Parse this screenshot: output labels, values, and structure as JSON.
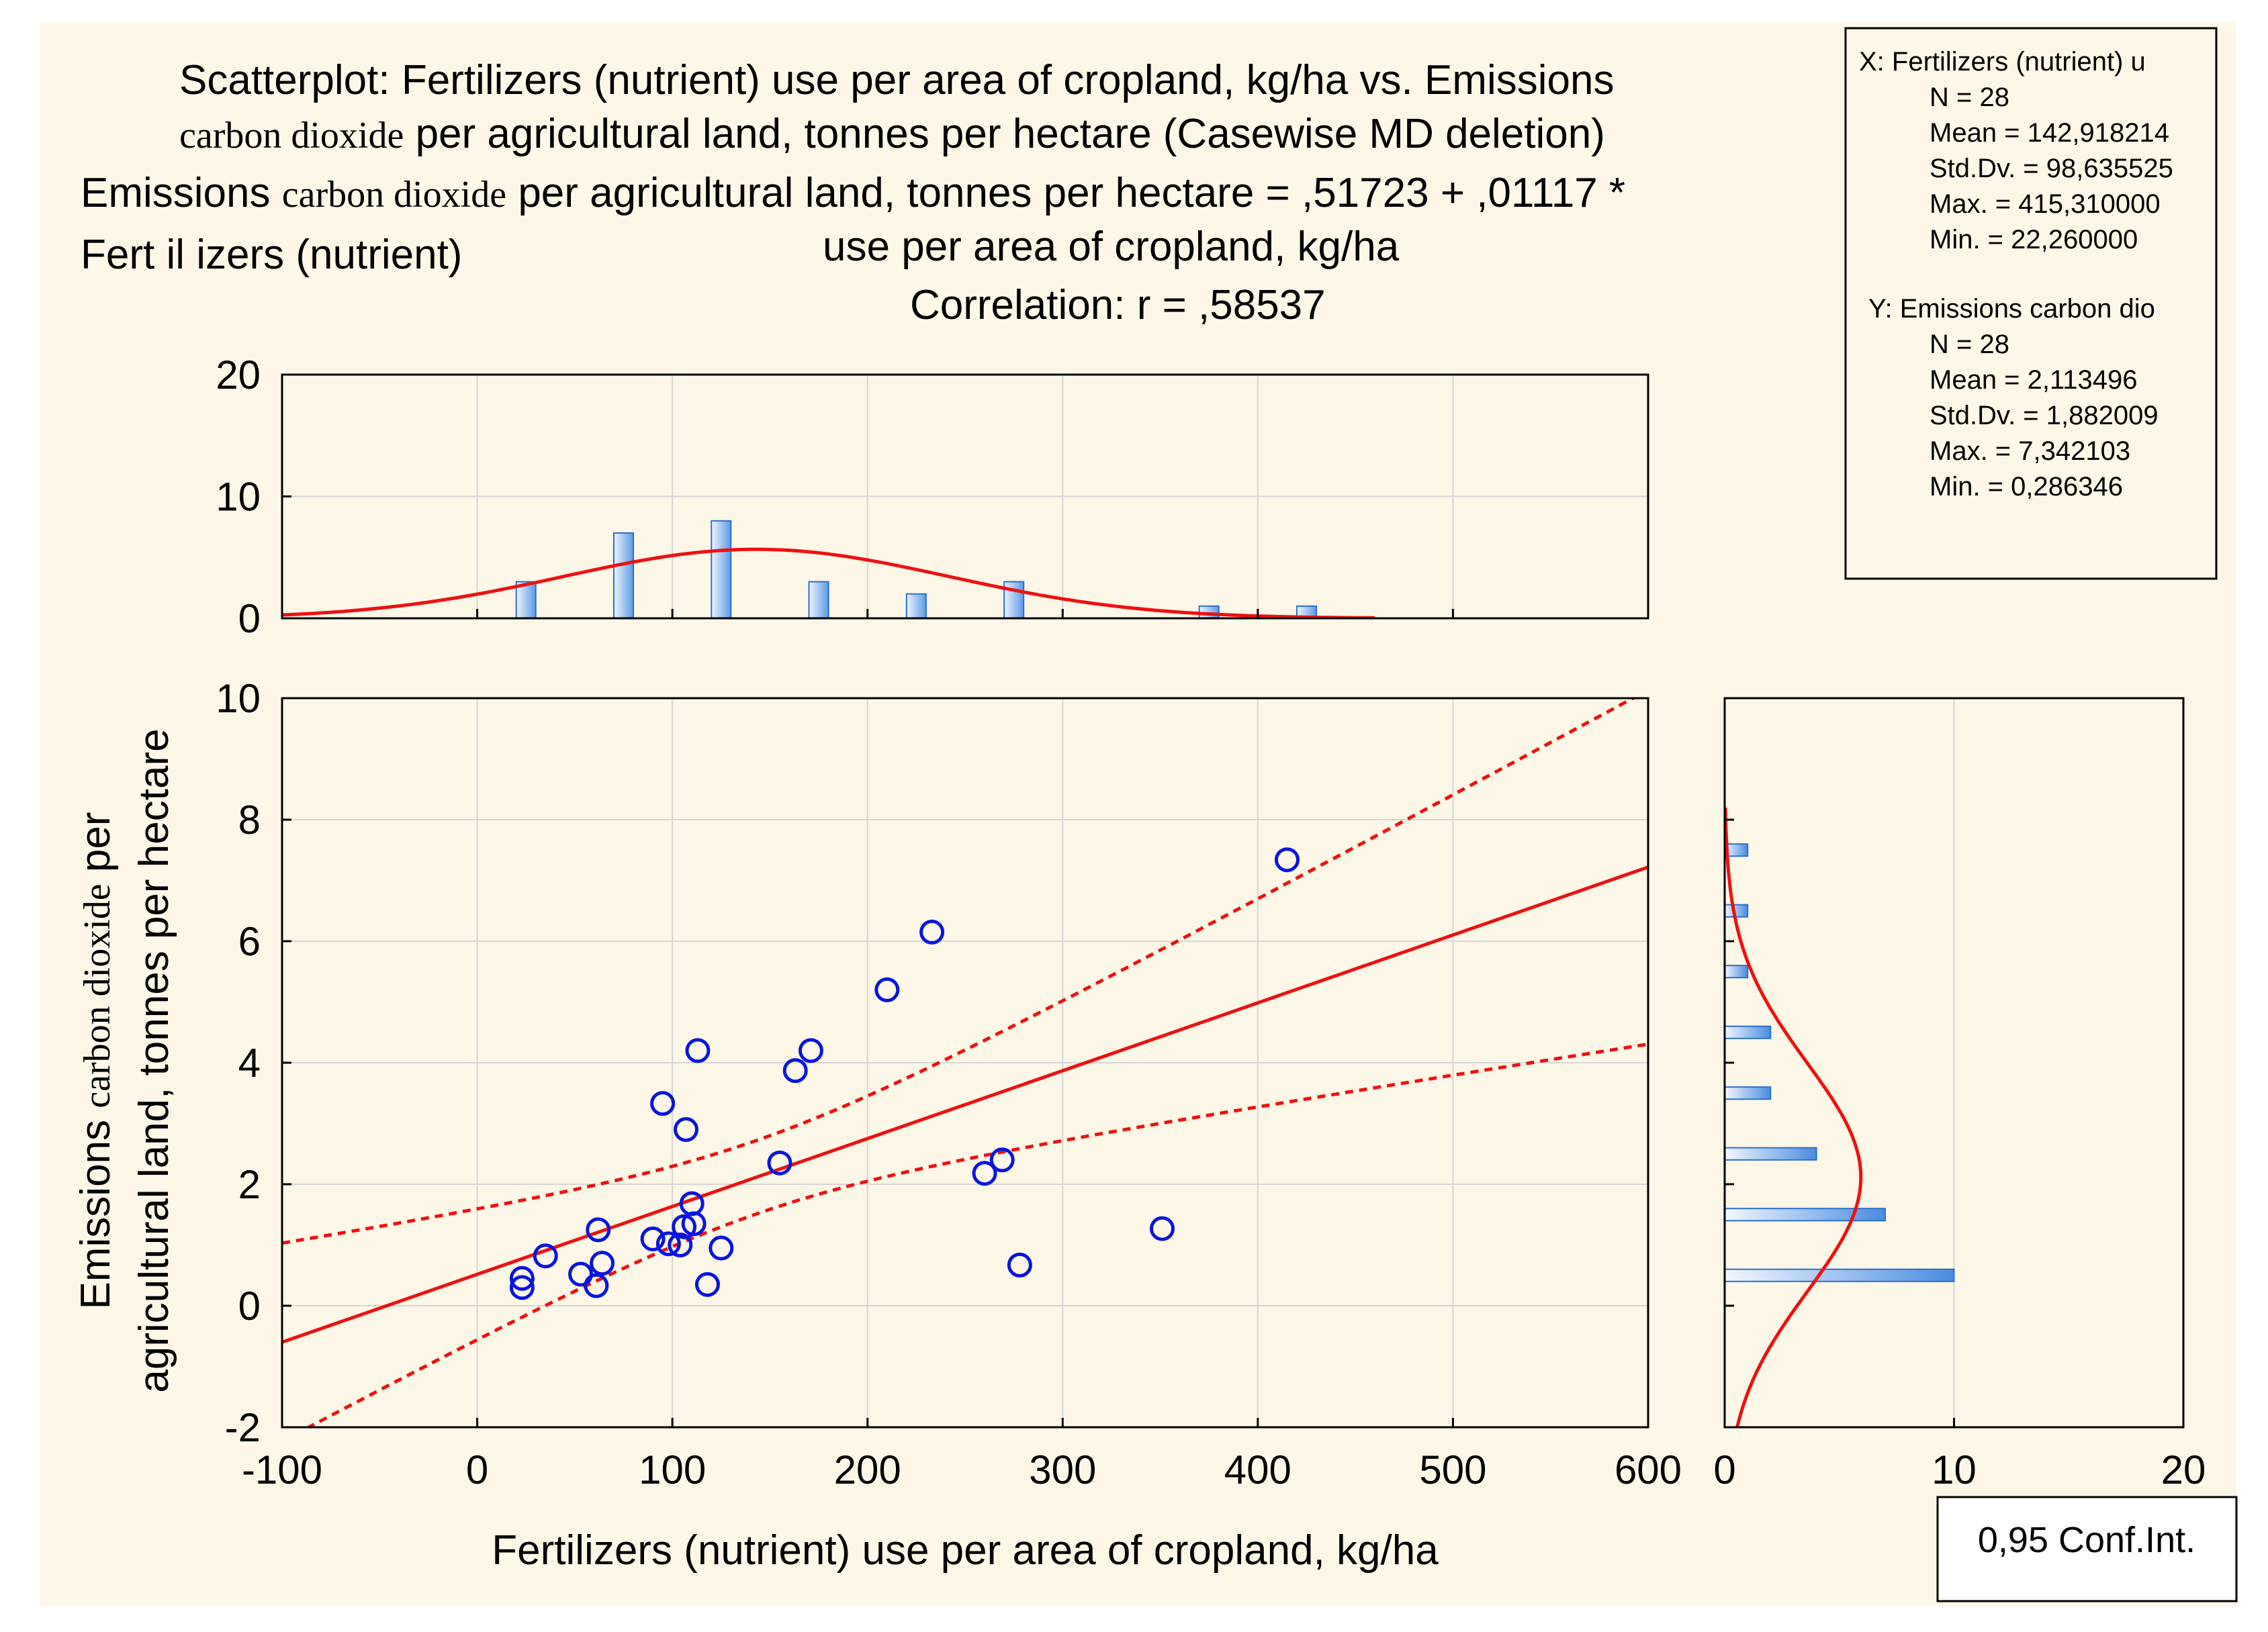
{
  "chart_data": {
    "type": "scatter",
    "title_lines": [
      {
        "a": "Scatterplot: Fertilizers (nutrient) use per area of cropland, kg/ha vs. Emissions"
      },
      {
        "a_serif": "carbon  dioxide",
        "b": " per agricultural land, tonnes per hectare (Casewise MD deletion)"
      },
      {
        "a": "Emissions ",
        "a_serif": "carbon dioxide",
        "b": " per agricultural land, tonnes per hectare = ,51723 + ,01117 *"
      },
      {
        "left": "Fert il  izers (nutrient)",
        "right": "use per area of cropland, kg/ha"
      },
      {
        "a": "Correlation: r = ,58537"
      }
    ],
    "xlabel": "Fertilizers (nutrient) use per area of cropland, kg/ha",
    "ylabel_line1_a": "Emissions ",
    "ylabel_line1_serif": "carbon dioxide",
    "ylabel_line1_b": " per",
    "ylabel_line2": "agricultural land, tonnes per hectare",
    "xlim": [
      -100,
      600
    ],
    "ylim": [
      -2,
      10
    ],
    "x_ticks": [
      "-100",
      "0",
      "100",
      "200",
      "300",
      "400",
      "500",
      "600"
    ],
    "y_ticks": [
      "-2",
      "0",
      "2",
      "4",
      "6",
      "8",
      "10"
    ],
    "points": [
      [
        23,
        0.45
      ],
      [
        23,
        0.3
      ],
      [
        35,
        0.82
      ],
      [
        53,
        0.52
      ],
      [
        61,
        0.33
      ],
      [
        62,
        1.25
      ],
      [
        64,
        0.7
      ],
      [
        90,
        1.1
      ],
      [
        95,
        3.33
      ],
      [
        98,
        1.02
      ],
      [
        104,
        1.0
      ],
      [
        106,
        1.3
      ],
      [
        107,
        2.9
      ],
      [
        110,
        1.68
      ],
      [
        111,
        1.35
      ],
      [
        113,
        4.2
      ],
      [
        118,
        0.35
      ],
      [
        125,
        0.95
      ],
      [
        155,
        2.35
      ],
      [
        163,
        3.87
      ],
      [
        171,
        4.2
      ],
      [
        210,
        5.2
      ],
      [
        233,
        6.15
      ],
      [
        260,
        2.18
      ],
      [
        269,
        2.4
      ],
      [
        278,
        0.67
      ],
      [
        351,
        1.27
      ],
      [
        415,
        7.34
      ]
    ],
    "regression": {
      "intercept": 0.51723,
      "slope": 0.01117
    },
    "conf_band": {
      "n": 28,
      "x_mean": 142.918214,
      "x_sd": 98.635525,
      "y_sd": 1.882009,
      "r": 0.58537,
      "t": 2.056
    },
    "top_hist": {
      "ylim": [
        0,
        20
      ],
      "y_ticks": [
        "0",
        "10",
        "20"
      ],
      "bins": [
        [
          25,
          3
        ],
        [
          75,
          7
        ],
        [
          125,
          8
        ],
        [
          175,
          3
        ],
        [
          225,
          2
        ],
        [
          275,
          3
        ],
        [
          375,
          1
        ],
        [
          425,
          1
        ]
      ],
      "bin_width": 50,
      "normal": {
        "mean": 142.918214,
        "sd": 98.635525
      }
    },
    "right_hist": {
      "xlim": [
        0,
        20
      ],
      "x_ticks": [
        "0",
        "10",
        "20"
      ],
      "bins": [
        [
          0.5,
          10
        ],
        [
          1.5,
          7
        ],
        [
          2.5,
          4
        ],
        [
          3.5,
          2
        ],
        [
          4.5,
          2
        ],
        [
          5.5,
          1
        ],
        [
          6.5,
          1
        ],
        [
          7.5,
          1
        ]
      ],
      "bin_width": 1,
      "normal": {
        "mean": 2.113496,
        "sd": 1.882009
      }
    },
    "stats_box": {
      "x_header": "X:  Fertilizers (nutrient) u",
      "x_lines": [
        "N = 28",
        "Mean = 142,918214",
        "Std.Dv. = 98,635525",
        "Max. = 415,310000",
        "Min. = 22,260000"
      ],
      "y_header": "Y:  Emissions carbon dio",
      "y_lines": [
        "N = 28",
        "Mean = 2,113496",
        "Std.Dv. = 1,882009",
        "Max. = 7,342103",
        "Min. = 0,286346"
      ]
    },
    "legend_label": "0,95 Conf.Int.",
    "colors": {
      "background": "#fdf7e7",
      "line": "#ee1111",
      "marker": "#0a14e0",
      "grid": "#d6d6d6",
      "bar_light": "#e6f1fc",
      "bar_dark": "#4a90e0"
    }
  }
}
